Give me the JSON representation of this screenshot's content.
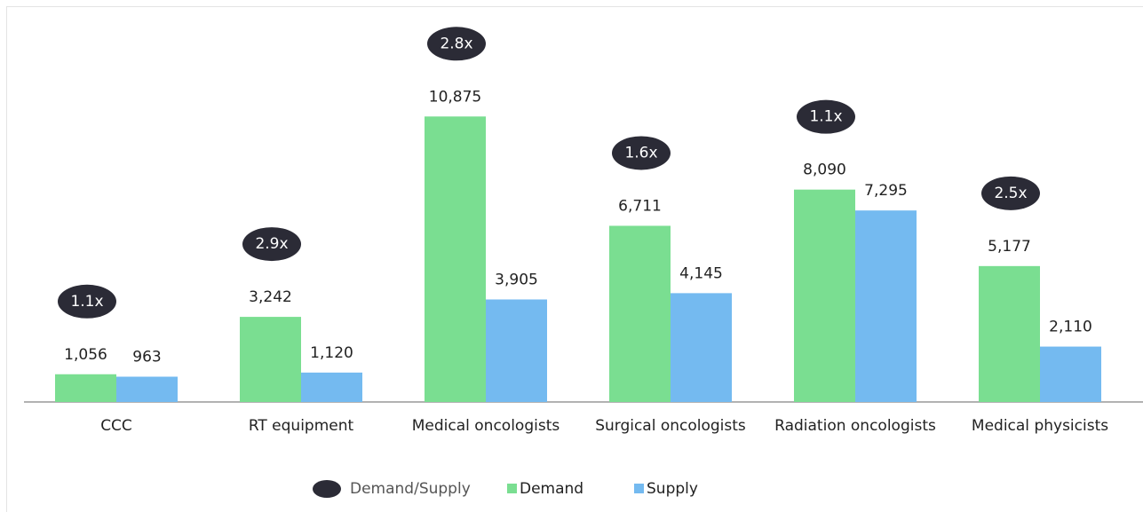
{
  "chart_data": {
    "type": "bar",
    "categories": [
      "CCC",
      "RT equipment",
      "Medical oncologists",
      "Surgical oncologists",
      "Radiation oncologists",
      "Medical physicists"
    ],
    "series": [
      {
        "name": "Demand",
        "color": "#7ade91",
        "values": [
          1056,
          3242,
          10875,
          6711,
          8090,
          5177
        ],
        "value_labels": [
          "1,056",
          "3,242",
          "10,875",
          "6,711",
          "8,090",
          "5,177"
        ]
      },
      {
        "name": "Supply",
        "color": "#74baf0",
        "values": [
          963,
          1120,
          3905,
          4145,
          7295,
          2110
        ],
        "value_labels": [
          "963",
          "1,120",
          "3,905",
          "4,145",
          "7,295",
          "2,110"
        ]
      }
    ],
    "annotations": [
      "1.1x",
      "2.9x",
      "2.8x",
      "1.6x",
      "1.1x",
      "2.5x"
    ],
    "annotation_legend": "Demand/Supply",
    "annotation_color": "#2b2b36",
    "ylim": [
      0,
      12000
    ]
  }
}
